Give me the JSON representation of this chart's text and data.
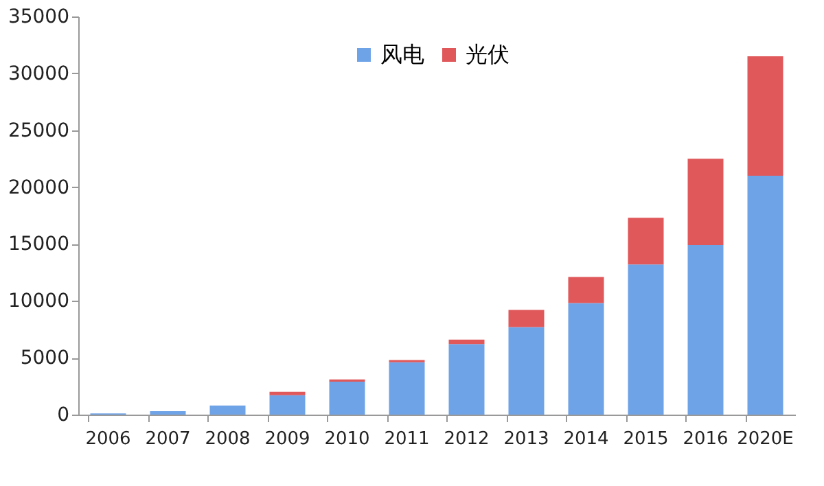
{
  "chart_data": {
    "type": "bar",
    "stacked": true,
    "categories": [
      "2006",
      "2007",
      "2008",
      "2009",
      "2010",
      "2011",
      "2012",
      "2013",
      "2014",
      "2015",
      "2016",
      "2020E"
    ],
    "series": [
      {
        "name": "风电",
        "color": "#6fa3e8",
        "values": [
          100,
          300,
          800,
          1700,
          2900,
          4600,
          6200,
          7700,
          9800,
          13200,
          14900,
          21000
        ]
      },
      {
        "name": "光伏",
        "color": "#e0585a",
        "values": [
          0,
          0,
          0,
          300,
          200,
          200,
          400,
          1500,
          2300,
          4100,
          7600,
          10500
        ]
      }
    ],
    "ylim": [
      0,
      35000
    ],
    "yticks": [
      0,
      5000,
      10000,
      15000,
      20000,
      25000,
      30000,
      35000
    ],
    "grid": false,
    "legend": "top"
  }
}
